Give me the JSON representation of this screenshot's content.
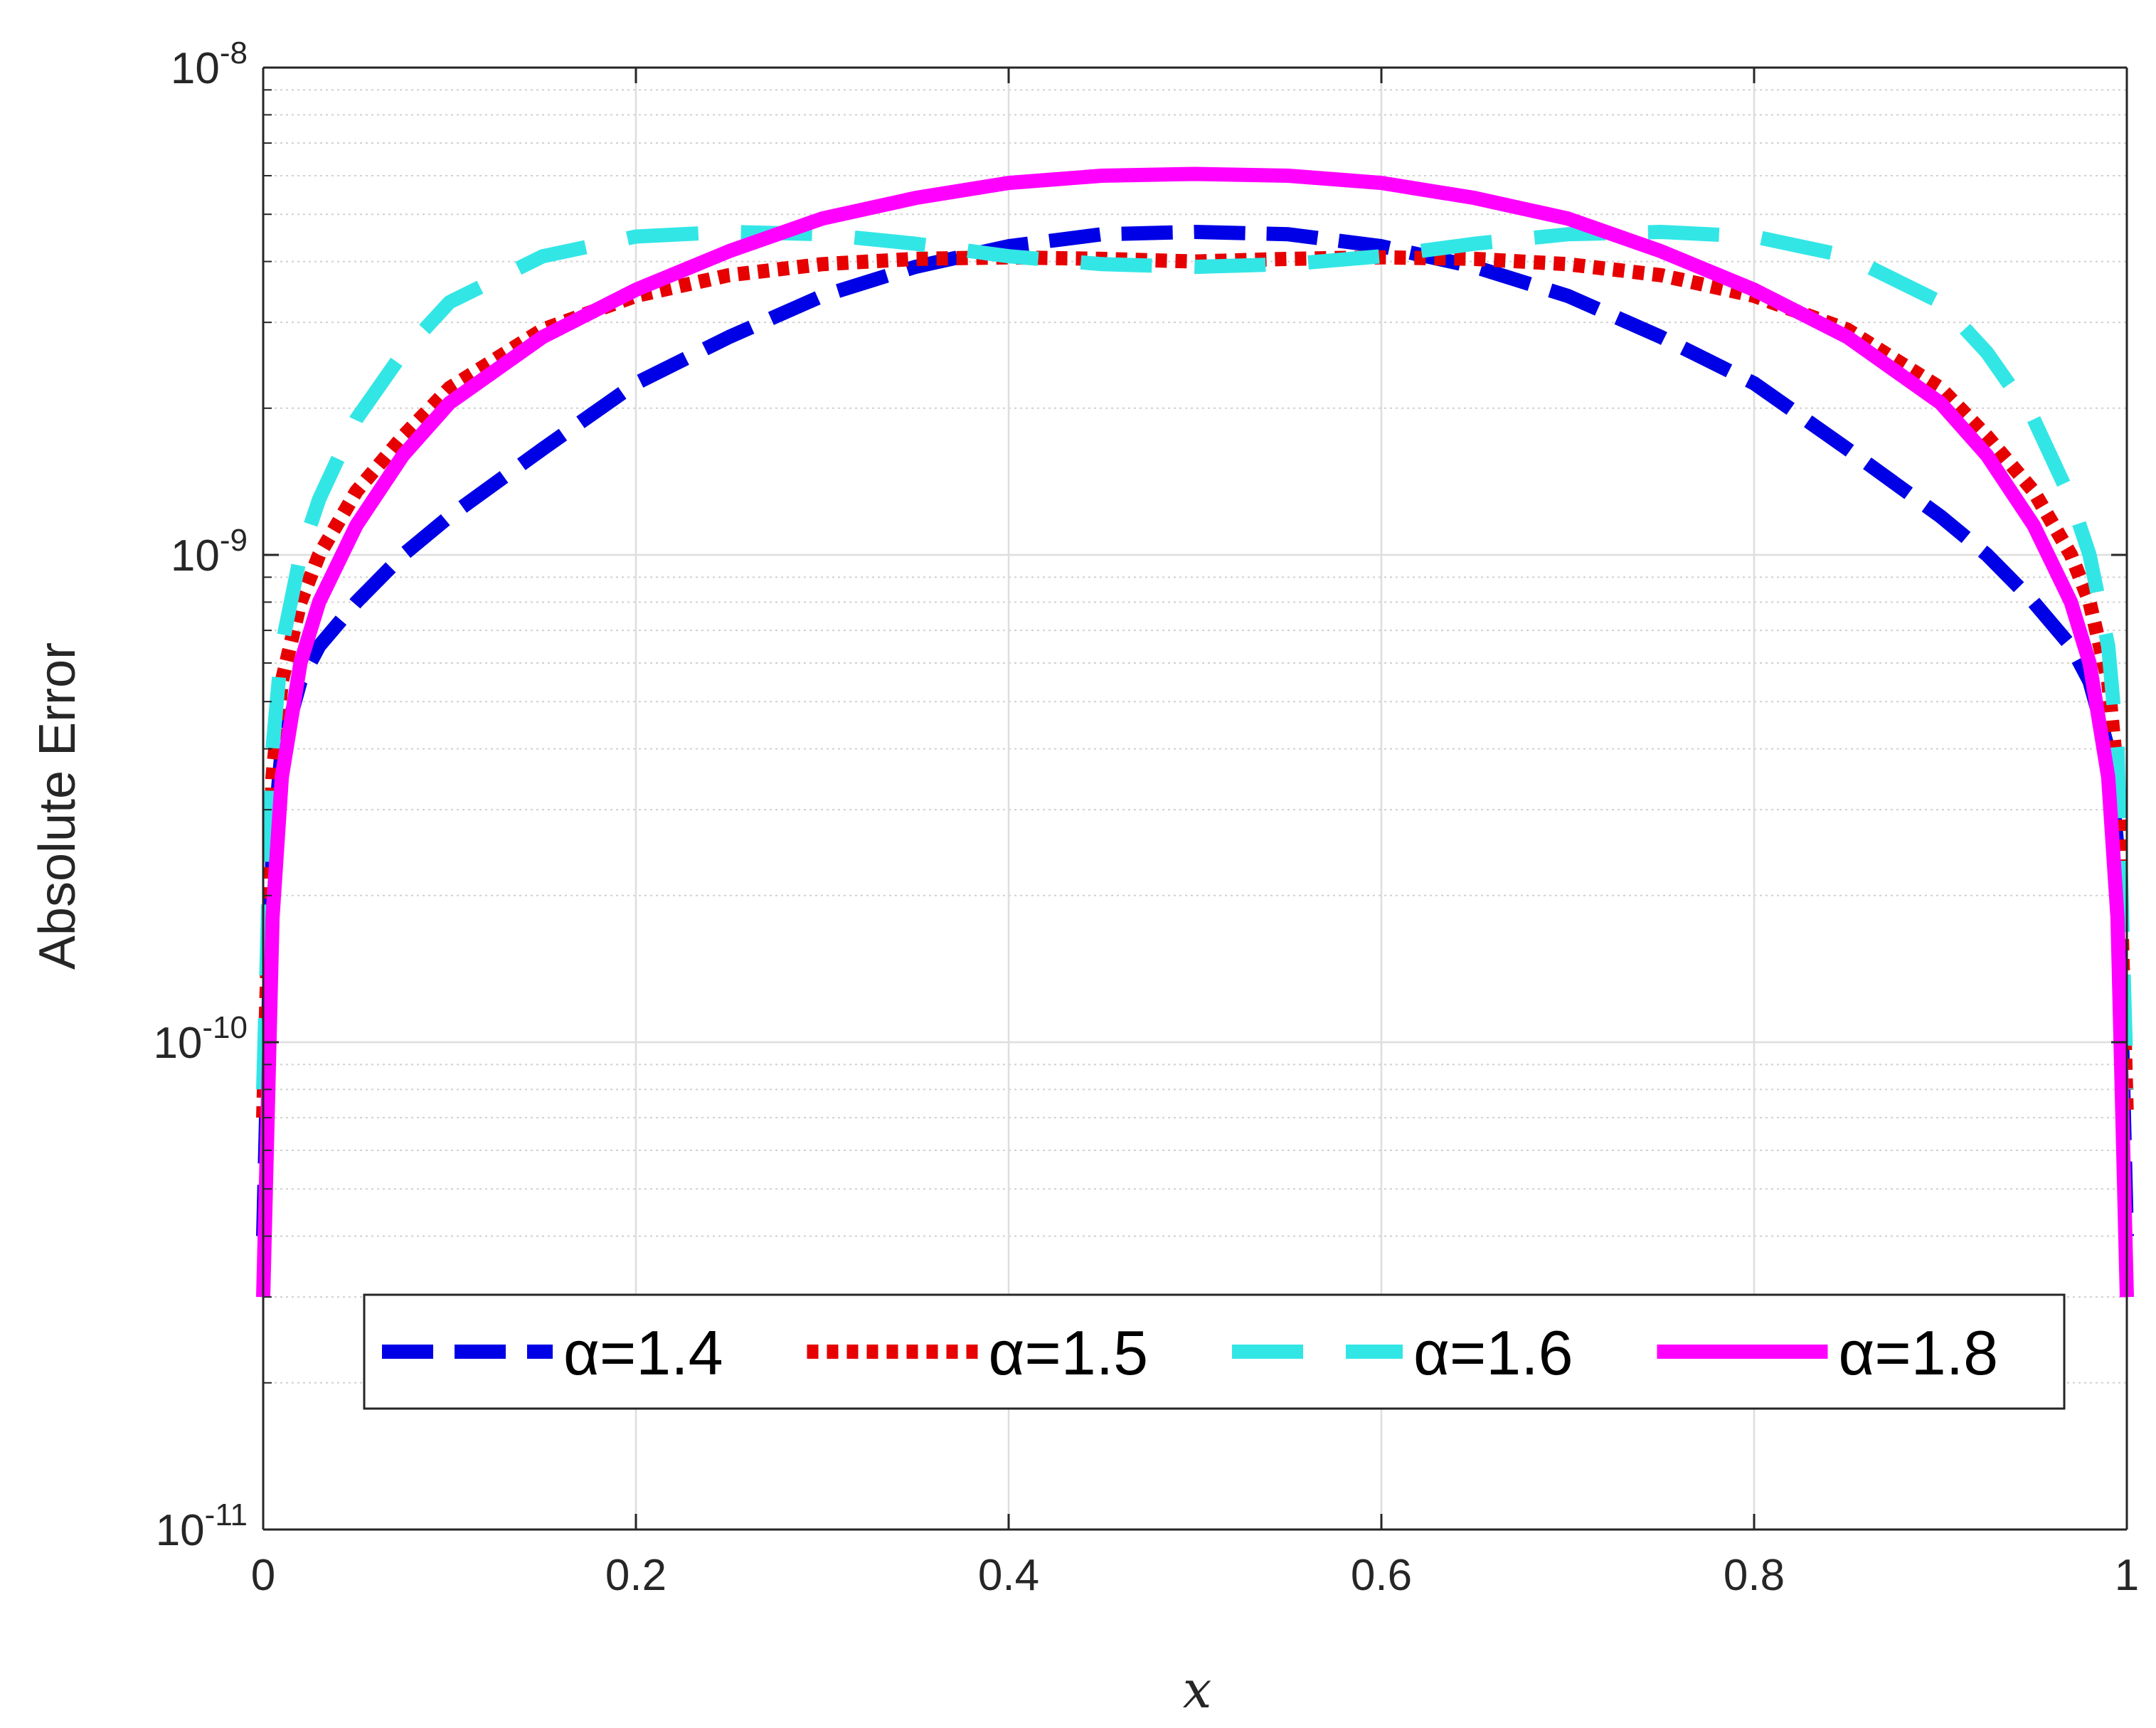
{
  "chart_data": {
    "type": "line",
    "title": "",
    "xlabel": "x",
    "ylabel": "Absolute Error",
    "xlim": [
      0,
      1
    ],
    "ylim": [
      1e-11,
      1e-08
    ],
    "yscale": "log",
    "grid": true,
    "minor_grid_y": true,
    "legend_position": "bottom",
    "legend_orientation": "horizontal",
    "x_ticks": [
      0,
      0.2,
      0.4,
      0.6,
      0.8,
      1
    ],
    "x_tick_labels": [
      "0",
      "0.2",
      "0.4",
      "0.6",
      "0.8",
      "1"
    ],
    "y_tick_labels": [
      {
        "base": "10",
        "exp": "-8"
      },
      {
        "base": "10",
        "exp": "-9"
      },
      {
        "base": "10",
        "exp": "-10"
      },
      {
        "base": "10",
        "exp": "-11"
      }
    ],
    "series": [
      {
        "name": "α=1.4",
        "color": "#0000e6",
        "style": "dashed",
        "x": [
          0,
          0.005,
          0.01,
          0.02,
          0.03,
          0.05,
          0.075,
          0.1,
          0.15,
          0.2,
          0.25,
          0.3,
          0.35,
          0.4,
          0.45,
          0.5,
          0.55,
          0.6,
          0.65,
          0.7,
          0.75,
          0.8,
          0.85,
          0.9,
          0.925,
          0.95,
          0.97,
          0.98,
          0.99,
          0.995,
          1
        ],
        "y": [
          4e-11,
          2.5e-10,
          4e-10,
          5.5e-10,
          6.5e-10,
          8e-10,
          1e-09,
          1.2e-09,
          1.65e-09,
          2.25e-09,
          2.8e-09,
          3.4e-09,
          3.9e-09,
          4.3e-09,
          4.55e-09,
          4.6e-09,
          4.55e-09,
          4.3e-09,
          3.9e-09,
          3.4e-09,
          2.8e-09,
          2.25e-09,
          1.65e-09,
          1.2e-09,
          1e-09,
          8e-10,
          6.5e-10,
          5.5e-10,
          4e-10,
          2.5e-10,
          4e-11
        ]
      },
      {
        "name": "α=1.5",
        "color": "#e60000",
        "style": "dotted",
        "x": [
          0,
          0.005,
          0.01,
          0.02,
          0.03,
          0.05,
          0.075,
          0.1,
          0.15,
          0.2,
          0.25,
          0.3,
          0.35,
          0.4,
          0.45,
          0.5,
          0.55,
          0.6,
          0.65,
          0.7,
          0.75,
          0.8,
          0.85,
          0.9,
          0.925,
          0.95,
          0.97,
          0.98,
          0.99,
          0.995,
          1
        ],
        "y": [
          7e-11,
          3.5e-10,
          5.5e-10,
          8e-10,
          1e-09,
          1.35e-09,
          1.75e-09,
          2.2e-09,
          2.9e-09,
          3.4e-09,
          3.75e-09,
          3.95e-09,
          4.05e-09,
          4.08e-09,
          4.05e-09,
          4e-09,
          4.05e-09,
          4.08e-09,
          4.05e-09,
          3.95e-09,
          3.75e-09,
          3.4e-09,
          2.9e-09,
          2.2e-09,
          1.75e-09,
          1.35e-09,
          1e-09,
          8e-10,
          5.5e-10,
          3.5e-10,
          7e-11
        ]
      },
      {
        "name": "α=1.6",
        "color": "#33e6e6",
        "style": "long-dash",
        "x": [
          0,
          0.005,
          0.01,
          0.02,
          0.03,
          0.05,
          0.075,
          0.1,
          0.15,
          0.2,
          0.25,
          0.3,
          0.35,
          0.4,
          0.45,
          0.5,
          0.55,
          0.6,
          0.65,
          0.7,
          0.75,
          0.8,
          0.85,
          0.9,
          0.925,
          0.95,
          0.97,
          0.98,
          0.99,
          0.995,
          1
        ],
        "y": [
          8e-11,
          4e-10,
          6.5e-10,
          1e-09,
          1.3e-09,
          1.9e-09,
          2.6e-09,
          3.3e-09,
          4.1e-09,
          4.5e-09,
          4.6e-09,
          4.55e-09,
          4.35e-09,
          4.1e-09,
          3.95e-09,
          3.9e-09,
          3.95e-09,
          4.1e-09,
          4.35e-09,
          4.55e-09,
          4.6e-09,
          4.5e-09,
          4.1e-09,
          3.3e-09,
          2.6e-09,
          1.9e-09,
          1.3e-09,
          1e-09,
          6.5e-10,
          4e-10,
          8e-11
        ]
      },
      {
        "name": "α=1.8",
        "color": "#ff00ff",
        "style": "solid",
        "x": [
          0,
          0.005,
          0.01,
          0.02,
          0.03,
          0.05,
          0.075,
          0.1,
          0.15,
          0.2,
          0.25,
          0.3,
          0.35,
          0.4,
          0.45,
          0.5,
          0.55,
          0.6,
          0.65,
          0.7,
          0.75,
          0.8,
          0.85,
          0.9,
          0.925,
          0.95,
          0.97,
          0.98,
          0.99,
          0.995,
          1
        ],
        "y": [
          3e-11,
          1.8e-10,
          3.5e-10,
          6e-10,
          8e-10,
          1.15e-09,
          1.6e-09,
          2.05e-09,
          2.8e-09,
          3.5e-09,
          4.2e-09,
          4.9e-09,
          5.4e-09,
          5.8e-09,
          6e-09,
          6.05e-09,
          6e-09,
          5.8e-09,
          5.4e-09,
          4.9e-09,
          4.2e-09,
          3.5e-09,
          2.8e-09,
          2.05e-09,
          1.6e-09,
          1.15e-09,
          8e-10,
          6e-10,
          3.5e-10,
          1.8e-10,
          3e-11
        ]
      }
    ]
  }
}
